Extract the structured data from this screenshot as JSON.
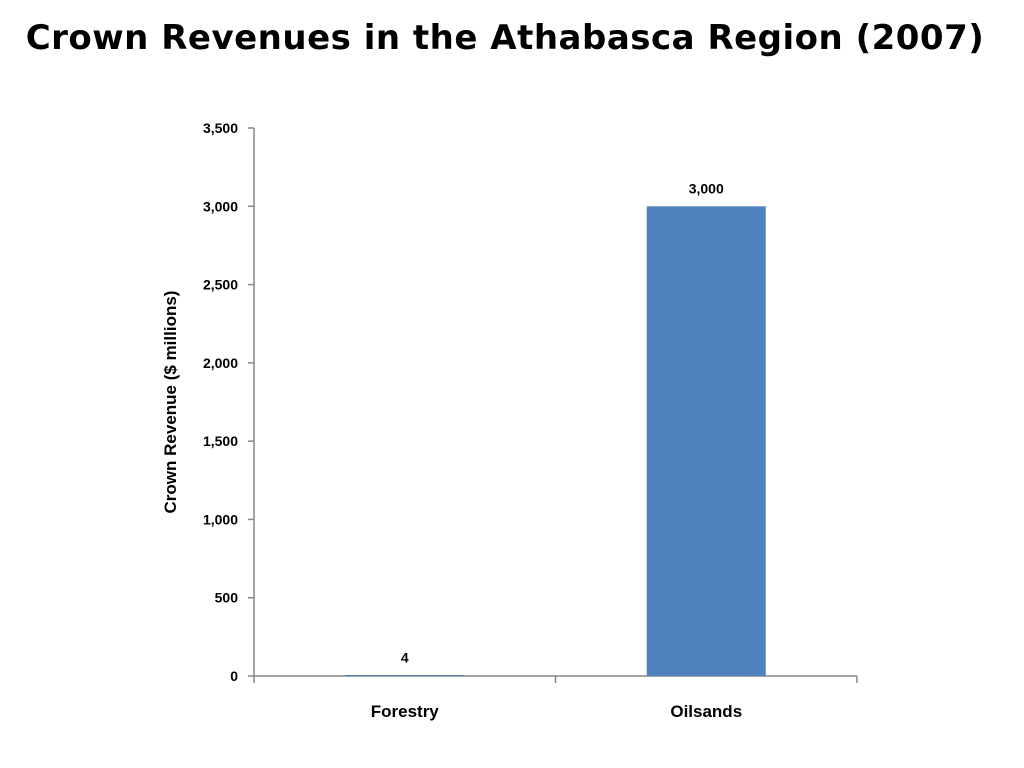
{
  "chart_data": {
    "type": "bar",
    "title": "Crown Revenues in the Athabasca Region (2007)",
    "xlabel": "",
    "ylabel": "Crown Revenue ($ millions)",
    "categories": [
      "Forestry",
      "Oilsands"
    ],
    "values": [
      4,
      3000
    ],
    "data_labels": [
      "4",
      "3,000"
    ],
    "ylim": [
      0,
      3500
    ],
    "yticks": [
      0,
      500,
      1000,
      1500,
      2000,
      2500,
      3000,
      3500
    ],
    "ytick_labels": [
      "0",
      "500",
      "1,000",
      "1,500",
      "2,000",
      "2,500",
      "3,000",
      "3,500"
    ],
    "grid": false,
    "legend": "none",
    "bar_color": "#4F81BD",
    "axis_color": "#868686"
  }
}
